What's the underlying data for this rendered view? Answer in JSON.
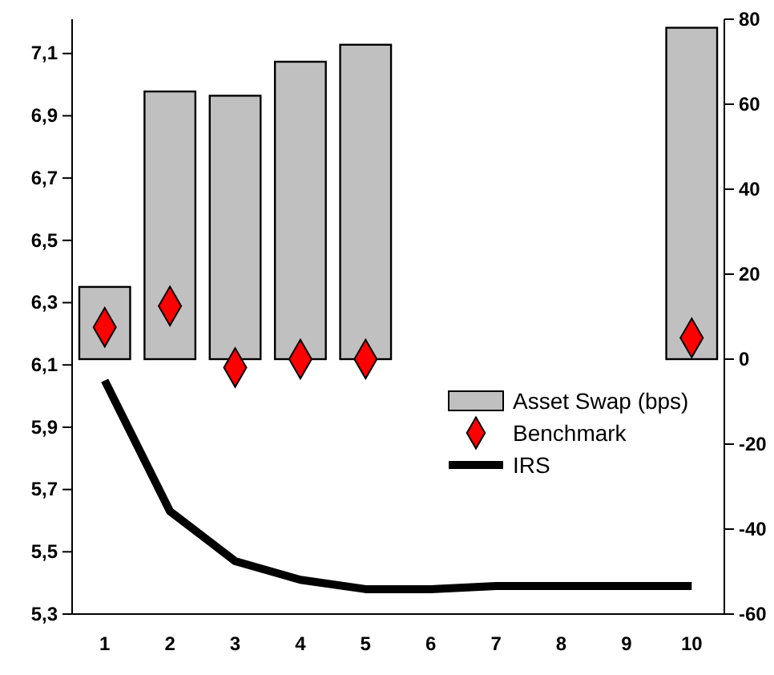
{
  "chart_data": {
    "type": "bar",
    "categories": [
      "1",
      "2",
      "3",
      "4",
      "5",
      "6",
      "7",
      "8",
      "9",
      "10"
    ],
    "series": [
      {
        "name": "Asset Swap (bps)",
        "axis": "y2",
        "color": "#c0c0c0",
        "values": [
          17,
          63,
          62,
          70,
          74,
          null,
          null,
          null,
          null,
          78
        ]
      },
      {
        "name": "Benchmark",
        "type": "scatter",
        "axis": "y2",
        "marker": "diamond",
        "color": "#ff0000",
        "values": [
          7.5,
          12.5,
          -2,
          0,
          0,
          null,
          null,
          null,
          null,
          5
        ]
      },
      {
        "name": "IRS",
        "type": "line",
        "axis": "y",
        "color": "#000000",
        "values": [
          6.05,
          5.63,
          5.47,
          5.41,
          5.38,
          5.38,
          5.39,
          5.39,
          5.39,
          5.39
        ]
      }
    ],
    "ylim": [
      5.3,
      7.21
    ],
    "yticks": [
      {
        "value": 5.3,
        "label": "5,3"
      },
      {
        "value": 5.5,
        "label": "5,5"
      },
      {
        "value": 5.7,
        "label": "5,7"
      },
      {
        "value": 5.9,
        "label": "5,9"
      },
      {
        "value": 6.1,
        "label": "6,1"
      },
      {
        "value": 6.3,
        "label": "6,3"
      },
      {
        "value": 6.5,
        "label": "6,5"
      },
      {
        "value": 6.7,
        "label": "6,7"
      },
      {
        "value": 6.9,
        "label": "6,9"
      },
      {
        "value": 7.1,
        "label": "7,1"
      }
    ],
    "y2lim": [
      -60,
      80
    ],
    "y2ticks": [
      -60,
      -40,
      -20,
      0,
      20,
      40,
      60,
      80
    ],
    "legend": "right",
    "grid": false
  }
}
